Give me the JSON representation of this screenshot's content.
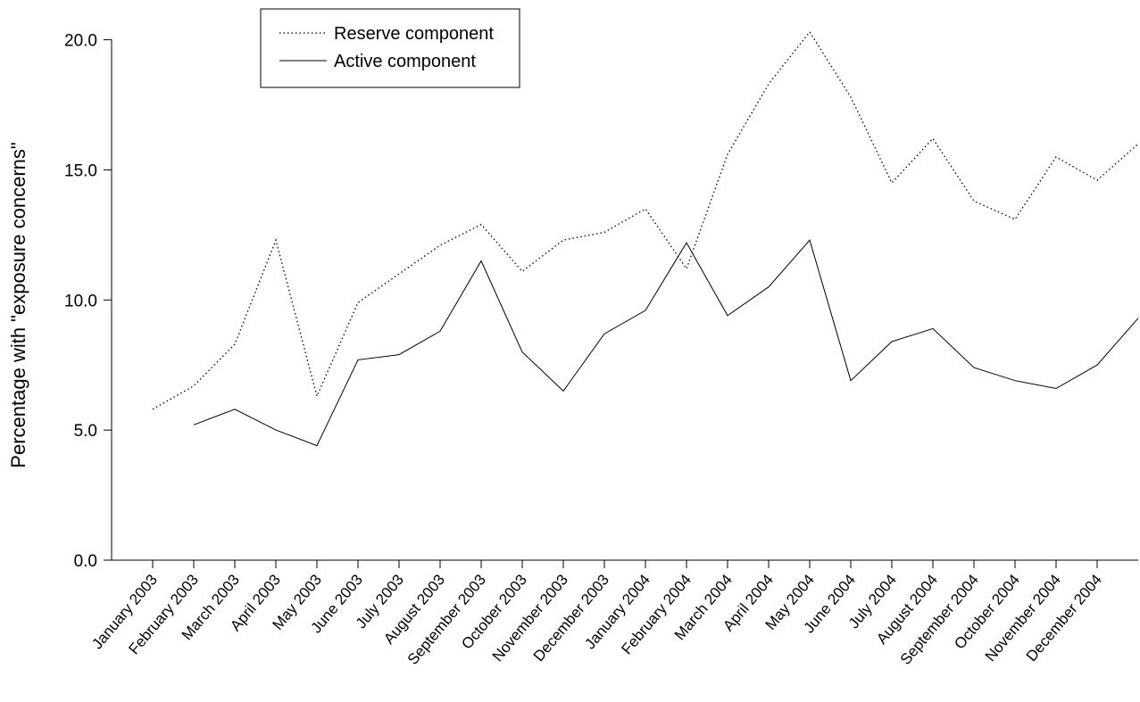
{
  "chart_data": {
    "type": "line",
    "title": "",
    "xlabel": "",
    "ylabel": "Percentage with \"exposure concerns\"",
    "ylim": [
      0,
      20.5
    ],
    "yticks": [
      "0.0",
      "5.0",
      "10.0",
      "15.0",
      "20.0"
    ],
    "grid": false,
    "legend_position": "top-left",
    "categories": [
      "January 2003",
      "February 2003",
      "March 2003",
      "April 2003",
      "May 2003",
      "June 2003",
      "July 2003",
      "August 2003",
      "September 2003",
      "October 2003",
      "November 2003",
      "December 2003",
      "January 2004",
      "February 2004",
      "March 2004",
      "April 2004",
      "May 2004",
      "June 2004",
      "July 2004",
      "August 2004",
      "September 2004",
      "October 2004",
      "November 2004",
      "December 2004",
      ""
    ],
    "series": [
      {
        "name": "Reserve component",
        "style": "dotted",
        "color": "#000000",
        "values": [
          5.8,
          6.7,
          8.3,
          12.3,
          6.3,
          9.9,
          11.0,
          12.1,
          12.9,
          11.1,
          12.3,
          12.6,
          13.5,
          11.2,
          15.6,
          18.3,
          20.3,
          17.8,
          14.5,
          16.2,
          13.8,
          13.1,
          15.5,
          14.6,
          16.0
        ]
      },
      {
        "name": "Active component",
        "style": "solid",
        "color": "#000000",
        "values": [
          null,
          5.2,
          5.8,
          5.0,
          4.4,
          7.7,
          7.9,
          8.8,
          11.5,
          8.0,
          6.5,
          8.7,
          9.6,
          12.2,
          9.4,
          10.5,
          12.3,
          6.9,
          8.4,
          8.9,
          7.4,
          6.9,
          6.6,
          7.5,
          9.3
        ]
      }
    ]
  }
}
